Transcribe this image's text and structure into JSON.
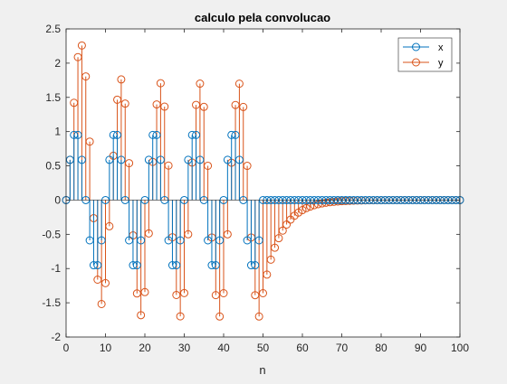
{
  "chart_data": {
    "type": "stem",
    "title": "calculo pela convolucao",
    "xlabel": "n",
    "ylabel": "",
    "xlim": [
      0,
      100
    ],
    "ylim": [
      -2,
      2.5
    ],
    "xticks": [
      0,
      10,
      20,
      30,
      40,
      50,
      60,
      70,
      80,
      90,
      100
    ],
    "yticks": [
      -2,
      -1.5,
      -1,
      -0.5,
      0,
      0.5,
      1,
      1.5,
      2,
      2.5
    ],
    "xtick_labels": [
      "0",
      "10",
      "20",
      "30",
      "40",
      "50",
      "60",
      "70",
      "80",
      "90",
      "100"
    ],
    "ytick_labels": [
      "-2",
      "-1.5",
      "-1",
      "-0.5",
      "0",
      "0.5",
      "1",
      "1.5",
      "2",
      "2.5"
    ],
    "grid": false,
    "legend_position": "top-right",
    "series": [
      {
        "name": "x",
        "color": "#0072BD",
        "x": [
          0,
          1,
          2,
          3,
          4,
          5,
          6,
          7,
          8,
          9,
          10,
          11,
          12,
          13,
          14,
          15,
          16,
          17,
          18,
          19,
          20,
          21,
          22,
          23,
          24,
          25,
          26,
          27,
          28,
          29,
          30,
          31,
          32,
          33,
          34,
          35,
          36,
          37,
          38,
          39,
          40,
          41,
          42,
          43,
          44,
          45,
          46,
          47,
          48,
          49,
          50,
          51,
          52,
          53,
          54,
          55,
          56,
          57,
          58,
          59,
          60,
          61,
          62,
          63,
          64,
          65,
          66,
          67,
          68,
          69,
          70,
          71,
          72,
          73,
          74,
          75,
          76,
          77,
          78,
          79,
          80,
          81,
          82,
          83,
          84,
          85,
          86,
          87,
          88,
          89,
          90,
          91,
          92,
          93,
          94,
          95,
          96,
          97,
          98,
          99,
          100
        ],
        "values": [
          0,
          0.588,
          0.951,
          0.951,
          0.588,
          0,
          -0.588,
          -0.951,
          -0.951,
          -0.588,
          0,
          0.588,
          0.951,
          0.951,
          0.588,
          0,
          -0.588,
          -0.951,
          -0.951,
          -0.588,
          0,
          0.588,
          0.951,
          0.951,
          0.588,
          0,
          -0.588,
          -0.951,
          -0.951,
          -0.588,
          0,
          0.588,
          0.951,
          0.951,
          0.588,
          0,
          -0.588,
          -0.951,
          -0.951,
          -0.588,
          0,
          0.588,
          0.951,
          0.951,
          0.588,
          0,
          -0.588,
          -0.951,
          -0.951,
          -0.588,
          0,
          0,
          0,
          0,
          0,
          0,
          0,
          0,
          0,
          0,
          0,
          0,
          0,
          0,
          0,
          0,
          0,
          0,
          0,
          0,
          0,
          0,
          0,
          0,
          0,
          0,
          0,
          0,
          0,
          0,
          0,
          0,
          0,
          0,
          0,
          0,
          0,
          0,
          0,
          0,
          0,
          0,
          0,
          0,
          0,
          0,
          0,
          0,
          0,
          0,
          0
        ]
      },
      {
        "name": "y",
        "color": "#D95319",
        "x": [
          0,
          1,
          2,
          3,
          4,
          5,
          6,
          7,
          8,
          9,
          10,
          11,
          12,
          13,
          14,
          15,
          16,
          17,
          18,
          19,
          20,
          21,
          22,
          23,
          24,
          25,
          26,
          27,
          28,
          29,
          30,
          31,
          32,
          33,
          34,
          35,
          36,
          37,
          38,
          39,
          40,
          41,
          42,
          43,
          44,
          45,
          46,
          47,
          48,
          49,
          50,
          51,
          52,
          53,
          54,
          55,
          56,
          57,
          58,
          59,
          60,
          61,
          62,
          63,
          64,
          65,
          66,
          67,
          68,
          69,
          70,
          71,
          72,
          73,
          74,
          75,
          76,
          77,
          78,
          79,
          80,
          81,
          82,
          83,
          84,
          85,
          86,
          87,
          88,
          89,
          90,
          91,
          92,
          93,
          94,
          95,
          96,
          97,
          98,
          99,
          100
        ],
        "values": [
          0,
          0.588,
          1.421,
          2.088,
          2.258,
          1.806,
          0.854,
          -0.264,
          -1.162,
          -1.518,
          -1.213,
          -0.382,
          0.647,
          1.466,
          1.762,
          1.409,
          0.539,
          -0.516,
          -1.364,
          -1.681,
          -1.344,
          -0.487,
          0.557,
          1.397,
          1.707,
          1.365,
          0.504,
          -0.543,
          -1.386,
          -1.698,
          -1.358,
          -0.499,
          0.548,
          1.39,
          1.701,
          1.361,
          0.501,
          -0.546,
          -1.388,
          -1.7,
          -1.36,
          -0.5,
          0.546,
          1.389,
          1.7,
          1.36,
          0.5,
          -0.546,
          -1.389,
          -1.7,
          -1.36,
          -1.088,
          -0.87,
          -0.696,
          -0.557,
          -0.446,
          -0.357,
          -0.285,
          -0.228,
          -0.183,
          -0.146,
          -0.117,
          -0.094,
          -0.075,
          -0.06,
          -0.048,
          -0.038,
          -0.031,
          -0.025,
          -0.02,
          -0.016,
          -0.013,
          -0.01,
          -0.008,
          -0.006,
          -0.005,
          -0.004,
          -0.003,
          -0.003,
          -0.002,
          -0.002,
          -0.001,
          -0.001,
          -0.001,
          -0.001,
          0,
          0,
          0,
          0,
          0,
          0,
          0,
          0,
          0,
          0,
          0,
          0,
          0,
          0,
          0,
          0
        ]
      }
    ]
  }
}
